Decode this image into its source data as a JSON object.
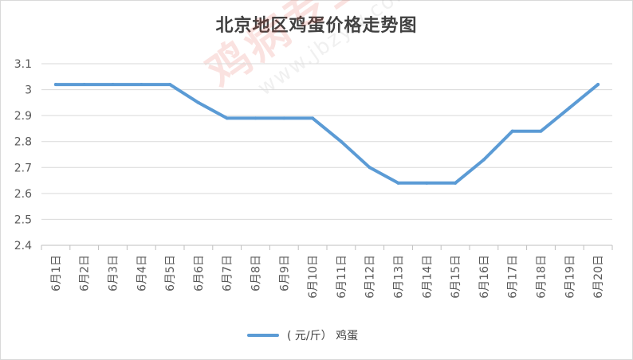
{
  "chart_data": {
    "type": "line",
    "title": "北京地区鸡蛋价格走势图",
    "categories": [
      "6月1日",
      "6月2日",
      "6月3日",
      "6月4日",
      "6月5日",
      "6月6日",
      "6月7日",
      "6月8日",
      "6月9日",
      "6月10日",
      "6月11日",
      "6月12日",
      "6月13日",
      "6月14日",
      "6月15日",
      "6月16日",
      "6月17日",
      "6月18日",
      "6月19日",
      "6月20日"
    ],
    "series": [
      {
        "name": "( 元/斤） 鸡蛋",
        "values": [
          3.02,
          3.02,
          3.02,
          3.02,
          3.02,
          2.95,
          2.89,
          2.89,
          2.89,
          2.89,
          2.8,
          2.7,
          2.64,
          2.64,
          2.64,
          2.73,
          2.84,
          2.84,
          2.93,
          3.02
        ]
      }
    ],
    "y_ticks": [
      "3.1",
      "3",
      "2.9",
      "2.8",
      "2.7",
      "2.6",
      "2.5",
      "2.4"
    ],
    "ylim": [
      2.4,
      3.1
    ],
    "grid": true,
    "legend_position": "bottom",
    "series_color": "#5b9bd5",
    "grid_color": "#d9d9d9",
    "axis_color": "#bfbfbf"
  },
  "watermark": {
    "main": "鸡病专业网",
    "url": "www.jbzyw.com"
  }
}
